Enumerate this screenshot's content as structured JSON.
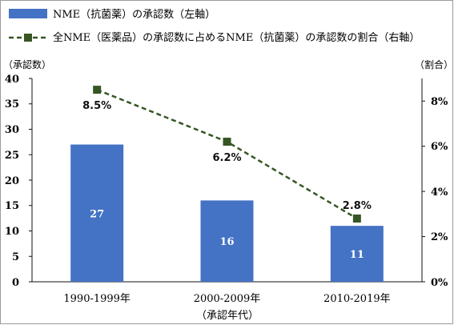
{
  "chart_data": {
    "type": "bar",
    "categories": [
      "1990-1999年",
      "2000-2009年",
      "2010-2019年"
    ],
    "series": [
      {
        "name": "NME（抗菌薬）の承認数（左軸）",
        "kind": "bar",
        "axis": "left",
        "values": [
          27,
          16,
          11
        ],
        "color": "#4472c4"
      },
      {
        "name": "全NME（医薬品）の承認数に占めるNME（抗菌薬）の承認数の割合（右軸）",
        "kind": "line",
        "axis": "right",
        "values": [
          0.085,
          0.062,
          0.028
        ],
        "labels": [
          "8.5%",
          "6.2%",
          "2.8%"
        ],
        "color": "#375623",
        "line_style": "dashed"
      }
    ],
    "y_left": {
      "label": "（承認数）",
      "ylim": [
        0,
        40
      ],
      "ticks": [
        "0",
        "5",
        "10",
        "15",
        "20",
        "25",
        "30",
        "35",
        "40"
      ]
    },
    "y_right": {
      "label": "（割合）",
      "ylim": [
        0,
        0.09
      ],
      "ticks": [
        "0%",
        "2%",
        "4%",
        "6%",
        "8%"
      ]
    },
    "xlabel": "（承認年代）",
    "legend_position": "top-left",
    "grid": false
  }
}
